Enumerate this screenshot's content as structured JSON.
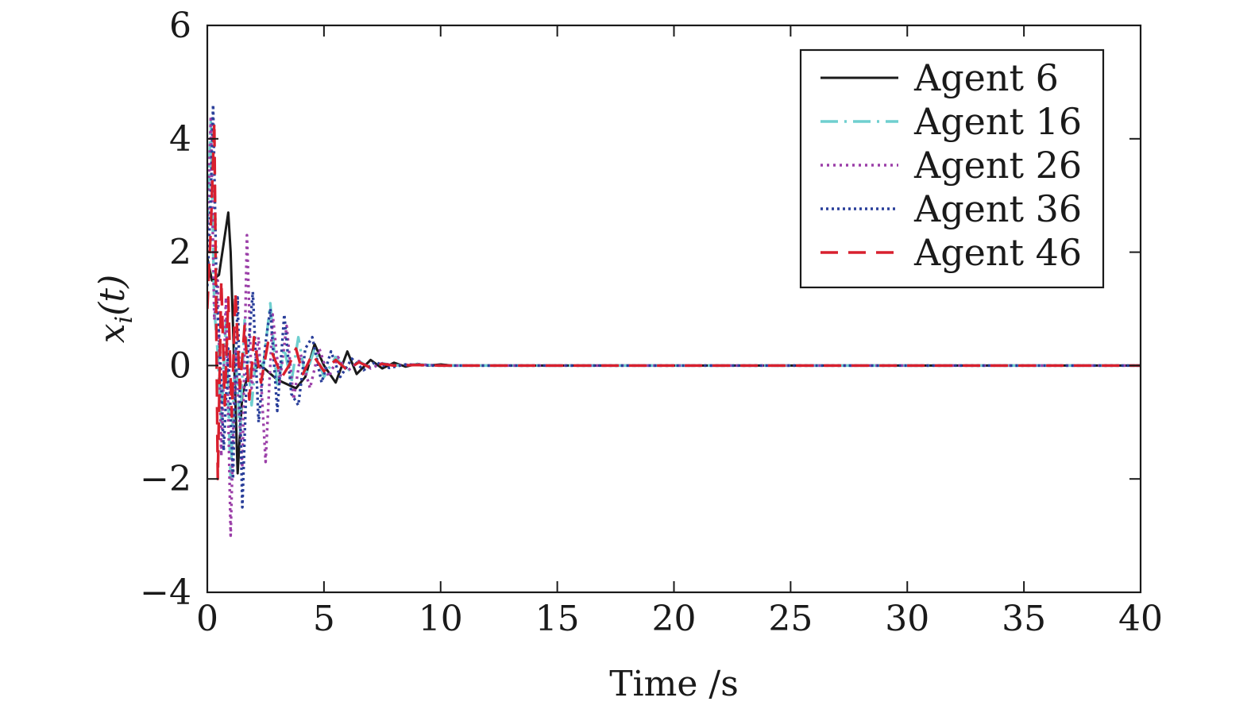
{
  "chart_data": {
    "type": "line",
    "xlabel": "Time /s",
    "ylabel": "x_i(t)",
    "ylabel_parts": {
      "main": "x",
      "sub": "i",
      "args": "(t)"
    },
    "xlim": [
      0,
      40
    ],
    "ylim": [
      -4,
      6
    ],
    "xticks": [
      0,
      5,
      10,
      15,
      20,
      25,
      30,
      35,
      40
    ],
    "xtick_labels": [
      "0",
      "5",
      "10",
      "15",
      "20",
      "25",
      "30",
      "35",
      "40"
    ],
    "yticks": [
      -4,
      -2,
      0,
      2,
      4,
      6
    ],
    "ytick_labels": [
      "−4",
      "−2",
      "0",
      "2",
      "4",
      "6"
    ],
    "grid": false,
    "legend_position": "top-right",
    "series": [
      {
        "name": "Agent 6",
        "color": "#1a1a1a",
        "dash": "solid",
        "x": [
          0,
          0.2,
          0.5,
          0.9,
          1.0,
          1.3,
          1.5,
          1.8,
          2.3,
          3.0,
          3.8,
          4.2,
          4.6,
          5.0,
          5.5,
          6.0,
          6.4,
          7.0,
          7.5,
          8.0,
          8.5,
          9.0,
          9.5,
          10.0,
          10.5,
          11,
          40
        ],
        "y": [
          1.9,
          1.5,
          1.6,
          2.7,
          2.0,
          -1.9,
          -0.5,
          -0.1,
          0.0,
          -0.25,
          -0.4,
          -0.2,
          0.38,
          0.0,
          -0.3,
          0.25,
          -0.15,
          0.1,
          -0.05,
          0.05,
          -0.02,
          0.03,
          0.0,
          0.02,
          0.0,
          0.0,
          0.0
        ]
      },
      {
        "name": "Agent 16",
        "color": "#6fcfcf",
        "dash": "dashdot",
        "x": [
          0,
          0.15,
          0.3,
          0.45,
          0.6,
          0.8,
          1.0,
          1.2,
          1.4,
          1.6,
          1.9,
          2.1,
          2.4,
          2.7,
          3.0,
          3.3,
          3.6,
          3.9,
          4.2,
          4.6,
          5.0,
          5.5,
          6.0,
          6.5,
          7.0,
          7.5,
          8.0,
          9.0,
          10,
          40
        ],
        "y": [
          2.5,
          4.3,
          1.0,
          0.2,
          -1.0,
          0.8,
          -2.0,
          0.3,
          -1.2,
          0.8,
          -0.7,
          0.2,
          0.0,
          1.1,
          -0.4,
          0.3,
          -0.3,
          0.5,
          -0.2,
          0.3,
          -0.2,
          0.15,
          -0.1,
          0.08,
          -0.05,
          0.04,
          0.0,
          0.02,
          0.0,
          0.0
        ]
      },
      {
        "name": "Agent 26",
        "color": "#9b3fa8",
        "dash": "dotted",
        "x": [
          0,
          0.15,
          0.3,
          0.45,
          0.6,
          0.8,
          1.0,
          1.2,
          1.5,
          1.7,
          1.9,
          2.2,
          2.5,
          2.8,
          3.1,
          3.4,
          3.7,
          4.0,
          4.4,
          4.8,
          5.2,
          5.6,
          6.0,
          6.5,
          7.0,
          7.5,
          8.0,
          9.0,
          10,
          40
        ],
        "y": [
          2.3,
          4.4,
          0.8,
          1.5,
          -1.6,
          1.2,
          -3.0,
          0.3,
          -1.8,
          2.3,
          -0.4,
          0.5,
          -1.7,
          0.9,
          -0.3,
          0.7,
          -0.6,
          0.2,
          -0.4,
          0.3,
          -0.2,
          0.15,
          -0.1,
          0.08,
          -0.05,
          0.04,
          0.0,
          0.02,
          0.0,
          0.0
        ]
      },
      {
        "name": "Agent 36",
        "color": "#2a3f9a",
        "dash": "dotted-dense",
        "x": [
          0,
          0.15,
          0.25,
          0.4,
          0.55,
          0.7,
          0.9,
          1.1,
          1.3,
          1.5,
          1.7,
          1.95,
          2.2,
          2.5,
          2.7,
          3.0,
          3.3,
          3.6,
          3.9,
          4.2,
          4.5,
          4.9,
          5.3,
          5.7,
          6.2,
          6.7,
          7.2,
          7.8,
          8.5,
          9.5,
          10.5,
          40
        ],
        "y": [
          1.4,
          3.0,
          4.6,
          1.2,
          0.2,
          -1.5,
          0.3,
          -2.0,
          1.2,
          -2.5,
          0.0,
          1.3,
          -1.0,
          0.4,
          1.0,
          -0.8,
          0.9,
          -0.5,
          -0.7,
          0.3,
          0.5,
          -0.3,
          0.25,
          -0.2,
          0.12,
          -0.08,
          0.06,
          -0.04,
          0.02,
          0.0,
          0.0,
          0.0
        ]
      },
      {
        "name": "Agent 46",
        "color": "#d8202e",
        "dash": "dashed",
        "x": [
          0,
          0.15,
          0.3,
          0.45,
          0.6,
          0.75,
          0.9,
          1.05,
          1.2,
          1.4,
          1.6,
          1.8,
          2.0,
          2.3,
          2.6,
          2.9,
          3.2,
          3.5,
          3.8,
          4.1,
          4.5,
          5.0,
          5.5,
          6.0,
          6.5,
          7.0,
          7.5,
          8.0,
          9.0,
          10,
          40
        ],
        "y": [
          1.0,
          2.4,
          4.3,
          -2.0,
          1.5,
          -0.7,
          1.2,
          -0.9,
          1.3,
          -0.4,
          0.7,
          -0.6,
          0.5,
          -0.3,
          0.4,
          0.1,
          -0.2,
          0.0,
          0.3,
          -0.15,
          0.2,
          -0.1,
          0.1,
          -0.08,
          0.06,
          -0.04,
          0.03,
          0.0,
          0.01,
          0.0,
          0.0
        ]
      }
    ]
  }
}
